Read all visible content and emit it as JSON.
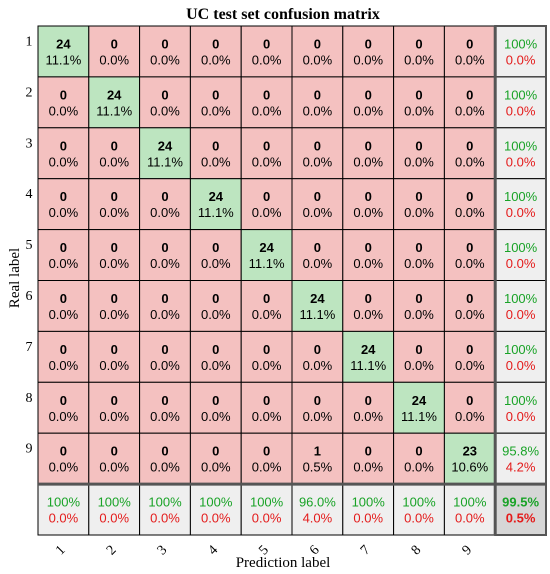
{
  "chart_data": {
    "type": "heatmap",
    "title": "UC test set confusion matrix",
    "xlabel": "Prediction label",
    "ylabel": "Real label",
    "row_labels": [
      "1",
      "2",
      "3",
      "4",
      "5",
      "6",
      "7",
      "8",
      "9"
    ],
    "col_labels": [
      "1",
      "2",
      "3",
      "4",
      "5",
      "6",
      "7",
      "8",
      "9"
    ],
    "counts": [
      [
        24,
        0,
        0,
        0,
        0,
        0,
        0,
        0,
        0
      ],
      [
        0,
        24,
        0,
        0,
        0,
        0,
        0,
        0,
        0
      ],
      [
        0,
        0,
        24,
        0,
        0,
        0,
        0,
        0,
        0
      ],
      [
        0,
        0,
        0,
        24,
        0,
        0,
        0,
        0,
        0
      ],
      [
        0,
        0,
        0,
        0,
        24,
        0,
        0,
        0,
        0
      ],
      [
        0,
        0,
        0,
        0,
        0,
        24,
        0,
        0,
        0
      ],
      [
        0,
        0,
        0,
        0,
        0,
        0,
        24,
        0,
        0
      ],
      [
        0,
        0,
        0,
        0,
        0,
        0,
        0,
        24,
        0
      ],
      [
        0,
        0,
        0,
        0,
        0,
        1,
        0,
        0,
        23
      ]
    ],
    "percents": [
      [
        "11.1%",
        "0.0%",
        "0.0%",
        "0.0%",
        "0.0%",
        "0.0%",
        "0.0%",
        "0.0%",
        "0.0%"
      ],
      [
        "0.0%",
        "11.1%",
        "0.0%",
        "0.0%",
        "0.0%",
        "0.0%",
        "0.0%",
        "0.0%",
        "0.0%"
      ],
      [
        "0.0%",
        "0.0%",
        "11.1%",
        "0.0%",
        "0.0%",
        "0.0%",
        "0.0%",
        "0.0%",
        "0.0%"
      ],
      [
        "0.0%",
        "0.0%",
        "0.0%",
        "11.1%",
        "0.0%",
        "0.0%",
        "0.0%",
        "0.0%",
        "0.0%"
      ],
      [
        "0.0%",
        "0.0%",
        "0.0%",
        "0.0%",
        "11.1%",
        "0.0%",
        "0.0%",
        "0.0%",
        "0.0%"
      ],
      [
        "0.0%",
        "0.0%",
        "0.0%",
        "0.0%",
        "0.0%",
        "11.1%",
        "0.0%",
        "0.0%",
        "0.0%"
      ],
      [
        "0.0%",
        "0.0%",
        "0.0%",
        "0.0%",
        "0.0%",
        "0.0%",
        "11.1%",
        "0.0%",
        "0.0%"
      ],
      [
        "0.0%",
        "0.0%",
        "0.0%",
        "0.0%",
        "0.0%",
        "0.0%",
        "0.0%",
        "11.1%",
        "0.0%"
      ],
      [
        "0.0%",
        "0.0%",
        "0.0%",
        "0.0%",
        "0.0%",
        "0.5%",
        "0.0%",
        "0.0%",
        "10.6%"
      ]
    ],
    "row_summary": [
      [
        "100%",
        "0.0%"
      ],
      [
        "100%",
        "0.0%"
      ],
      [
        "100%",
        "0.0%"
      ],
      [
        "100%",
        "0.0%"
      ],
      [
        "100%",
        "0.0%"
      ],
      [
        "100%",
        "0.0%"
      ],
      [
        "100%",
        "0.0%"
      ],
      [
        "100%",
        "0.0%"
      ],
      [
        "95.8%",
        "4.2%"
      ]
    ],
    "col_summary": [
      [
        "100%",
        "0.0%"
      ],
      [
        "100%",
        "0.0%"
      ],
      [
        "100%",
        "0.0%"
      ],
      [
        "100%",
        "0.0%"
      ],
      [
        "100%",
        "0.0%"
      ],
      [
        "96.0%",
        "4.0%"
      ],
      [
        "100%",
        "0.0%"
      ],
      [
        "100%",
        "0.0%"
      ],
      [
        "100%",
        "0.0%"
      ]
    ],
    "overall": [
      "99.5%",
      "0.5%"
    ],
    "colors": {
      "correct": "#bde5c0",
      "incorrect": "#f4c1c0",
      "summary": "#efefef",
      "overall": "#d6d6d6",
      "green_text": "#19a327",
      "red_text": "#e41b1b"
    }
  }
}
